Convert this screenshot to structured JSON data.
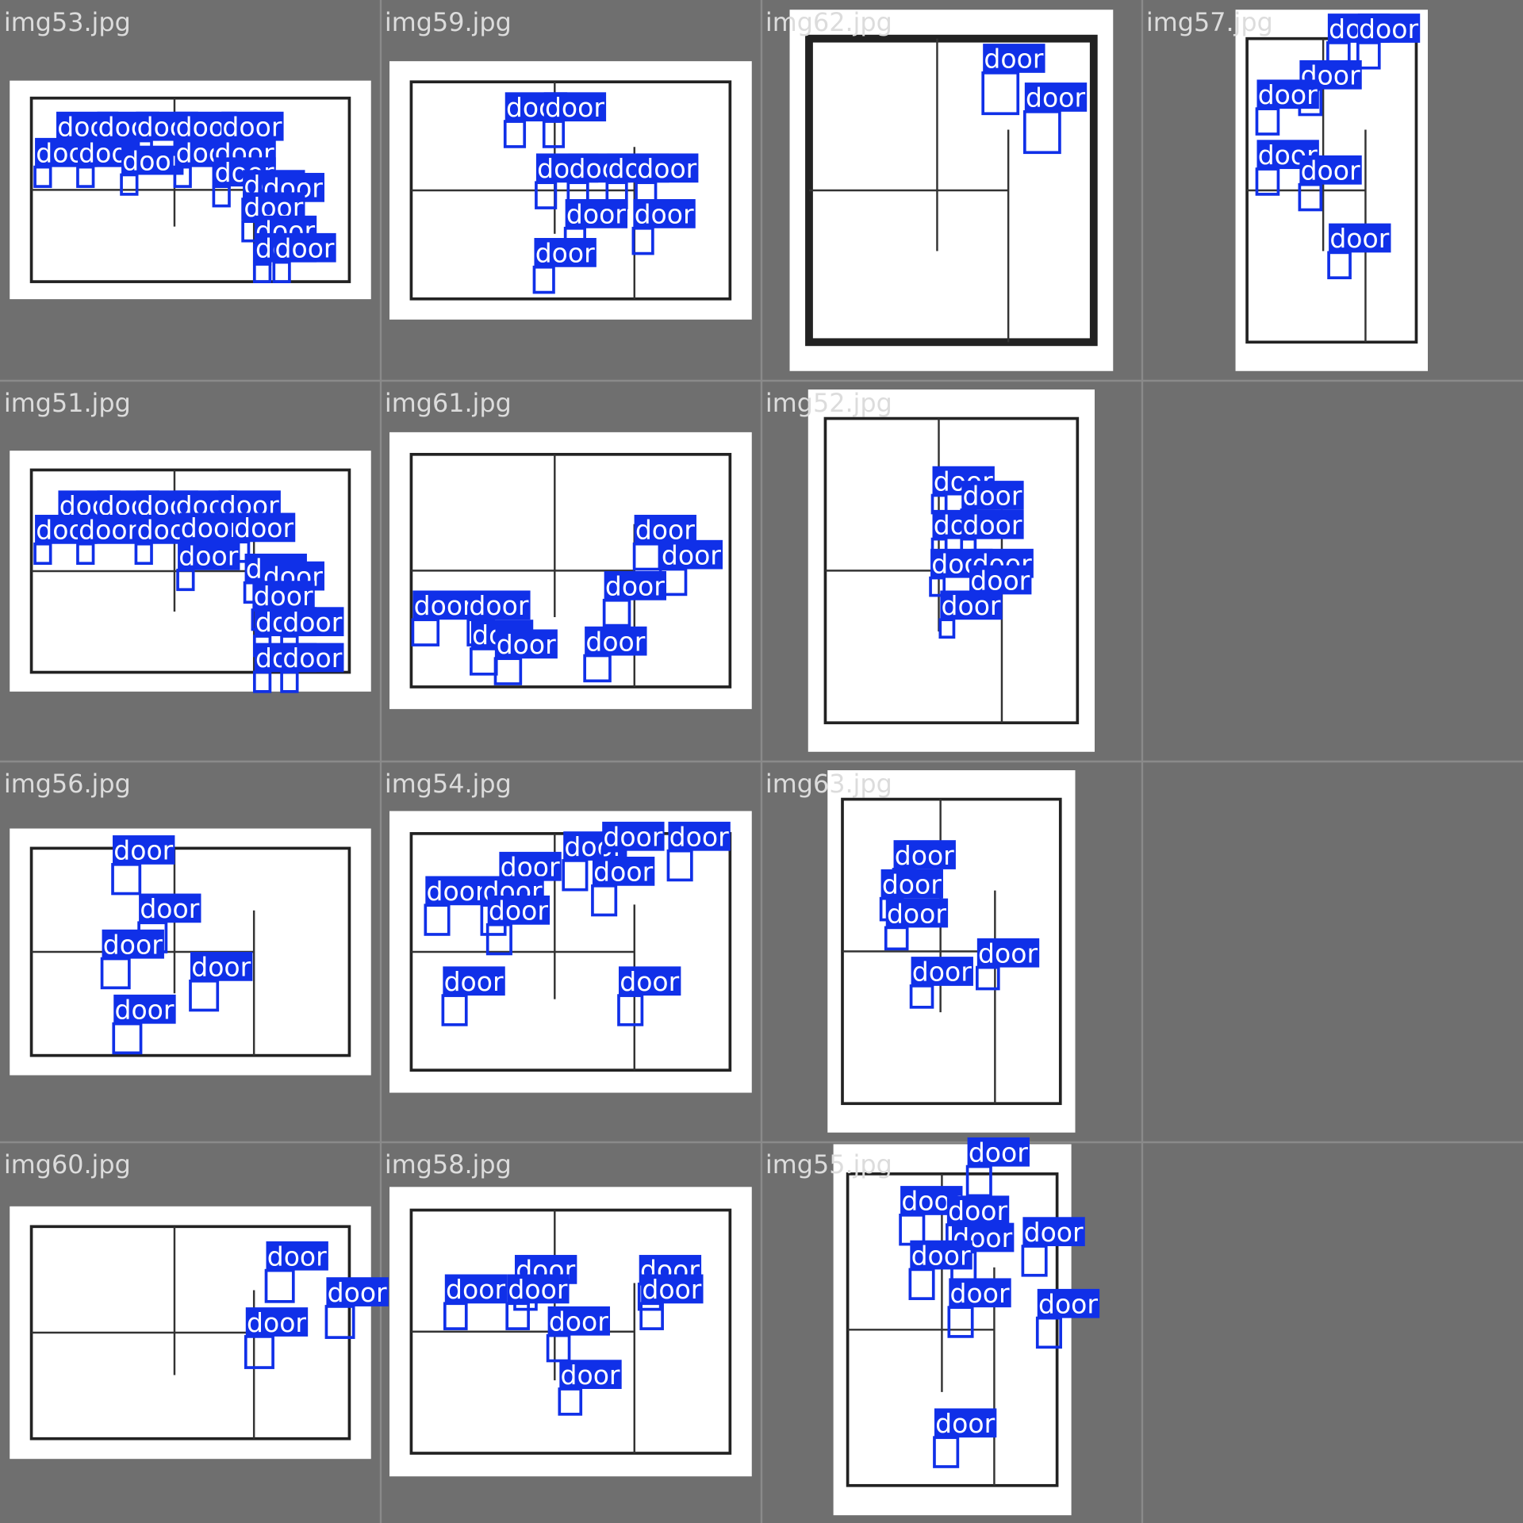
{
  "tiles": [
    {
      "filename": "img53.jpg",
      "detections": [
        "door",
        "door",
        "door",
        "door",
        "door",
        "door",
        "door",
        "door",
        "door",
        "door",
        "door",
        "door",
        "door",
        "door",
        "door",
        "door",
        "door"
      ]
    },
    {
      "filename": "img59.jpg",
      "detections": [
        "door",
        "door",
        "door",
        "door",
        "door",
        "door",
        "door",
        "door",
        "door"
      ]
    },
    {
      "filename": "img62.jpg",
      "detections": [
        "door",
        "door"
      ]
    },
    {
      "filename": "img57.jpg",
      "detections": [
        "door",
        "door",
        "door",
        "door",
        "door",
        "door",
        "door"
      ]
    },
    {
      "filename": "img51.jpg",
      "detections": [
        "door",
        "door",
        "door",
        "door",
        "door",
        "door",
        "door",
        "door",
        "door",
        "door",
        "door",
        "door",
        "door",
        "door",
        "door",
        "door",
        "door",
        "door"
      ]
    },
    {
      "filename": "img61.jpg",
      "detections": [
        "door",
        "door",
        "door",
        "door",
        "door",
        "door",
        "door",
        "door"
      ]
    },
    {
      "filename": "img52.jpg",
      "detections": [
        "door",
        "door",
        "door",
        "door",
        "door",
        "door",
        "door",
        "door"
      ]
    },
    {
      "filename": "img56.jpg",
      "detections": [
        "door",
        "door",
        "door",
        "door",
        "door"
      ]
    },
    {
      "filename": "img54.jpg",
      "detections": [
        "door",
        "door",
        "door",
        "door",
        "door",
        "door",
        "door",
        "door",
        "door",
        "door"
      ]
    },
    {
      "filename": "img63.jpg",
      "detections": [
        "door",
        "door",
        "door",
        "door",
        "door"
      ]
    },
    {
      "filename": "img60.jpg",
      "detections": [
        "door",
        "door",
        "door"
      ]
    },
    {
      "filename": "img58.jpg",
      "detections": [
        "door",
        "door",
        "door",
        "door",
        "door",
        "door",
        "door"
      ]
    },
    {
      "filename": "img55.jpg",
      "detections": [
        "door",
        "door",
        "door",
        "door",
        "door",
        "door",
        "door",
        "door",
        "door"
      ]
    }
  ]
}
